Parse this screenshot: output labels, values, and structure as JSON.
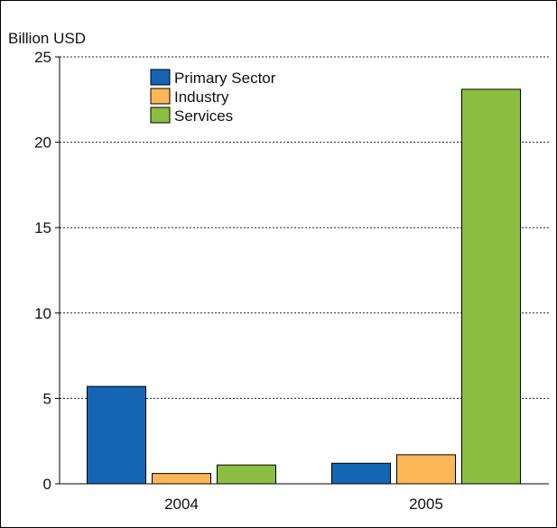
{
  "chart_data": {
    "type": "bar",
    "title": "",
    "ylabel": "Billion USD",
    "xlabel": "",
    "categories": [
      "2004",
      "2005"
    ],
    "ylim": [
      0,
      25
    ],
    "yticks": [
      0,
      5,
      10,
      15,
      20,
      25
    ],
    "grid": true,
    "legend_position": "top-left",
    "series": [
      {
        "name": "Primary Sector",
        "color": "#1466b4",
        "values": [
          5.7,
          1.2
        ]
      },
      {
        "name": "Industry",
        "color": "#fdb756",
        "values": [
          0.6,
          1.7
        ]
      },
      {
        "name": "Services",
        "color": "#8bbe40",
        "values": [
          1.1,
          23.1
        ]
      }
    ]
  }
}
